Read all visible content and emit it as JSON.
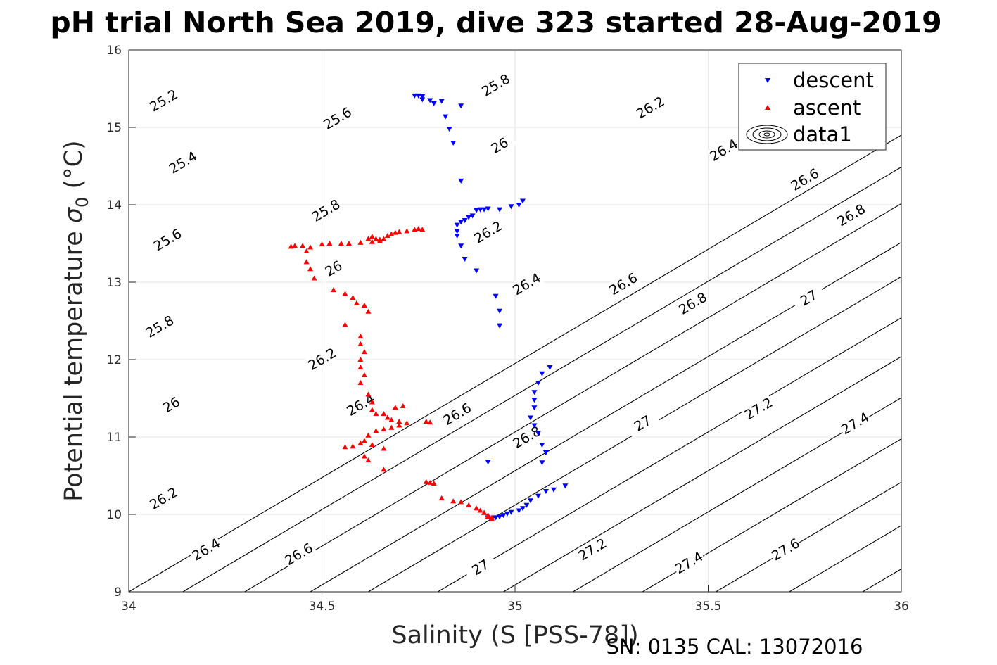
{
  "chart_data": {
    "type": "scatter",
    "title": "pH trial North Sea 2019, dive 323 started 28-Aug-2019",
    "xlabel": "Salinity (S [PSS-78])",
    "ylabel": "Potential temperature",
    "ylabel_symbol": "σ",
    "ylabel_sub": "0",
    "ylabel_unit": "(°C)",
    "xlim": [
      34,
      36
    ],
    "ylim": [
      9,
      16
    ],
    "xticks": [
      "34",
      "34.5",
      "35",
      "35.5",
      "36"
    ],
    "xtick_values": [
      34,
      34.5,
      35,
      35.5,
      36
    ],
    "yticks": [
      "9",
      "10",
      "11",
      "12",
      "13",
      "14",
      "15",
      "16"
    ],
    "ytick_values": [
      9,
      10,
      11,
      12,
      13,
      14,
      15,
      16
    ],
    "grid": true,
    "legend_position": "top-right",
    "legend": [
      "descent",
      "ascent",
      "data1"
    ],
    "footer": "SN: 0135  CAL: 13072016",
    "colors": {
      "descent": "#0000ff",
      "ascent": "#ff0000",
      "contour": "#000000",
      "grid": "#e6e6e6"
    },
    "contour_levels": [
      {
        "level": 25.2,
        "x0": 34.0,
        "labels": [
          {
            "text": "25.2",
            "s": 34.09,
            "t": 15.35
          }
        ]
      },
      {
        "level": 25.4,
        "x0": 34.14,
        "labels": [
          {
            "text": "25.4",
            "s": 34.14,
            "t": 14.55
          },
          {
            "text": "25.6",
            "s": 34.54,
            "t": 15.12
          }
        ]
      },
      {
        "level": 25.6,
        "x0": 34.3,
        "labels": [
          {
            "text": "25.6",
            "s": 34.1,
            "t": 13.55
          },
          {
            "text": "25.8",
            "s": 34.95,
            "t": 15.55
          }
        ]
      },
      {
        "level": 25.8,
        "x0": 34.47,
        "labels": [
          {
            "text": "25.8",
            "s": 34.08,
            "t": 12.43
          },
          {
            "text": "25.8",
            "s": 34.51,
            "t": 13.93
          },
          {
            "text": "26",
            "s": 34.96,
            "t": 14.77
          }
        ]
      },
      {
        "level": 26.0,
        "x0": 34.62,
        "labels": [
          {
            "text": "26",
            "s": 34.11,
            "t": 11.42
          },
          {
            "text": "26",
            "s": 34.53,
            "t": 13.18
          },
          {
            "text": "26.2",
            "s": 35.35,
            "t": 15.26
          }
        ]
      },
      {
        "level": 26.2,
        "x0": 34.8,
        "labels": [
          {
            "text": "26.2",
            "s": 34.09,
            "t": 10.21
          },
          {
            "text": "26.2",
            "s": 34.5,
            "t": 12.01
          },
          {
            "text": "26.2",
            "s": 34.93,
            "t": 13.65
          },
          {
            "text": "26.4",
            "s": 35.54,
            "t": 14.71
          }
        ]
      },
      {
        "level": 26.4,
        "x0": 34.97,
        "labels": [
          {
            "text": "26.4",
            "s": 34.2,
            "t": 9.55
          },
          {
            "text": "26.4",
            "s": 34.6,
            "t": 11.42
          },
          {
            "text": "26.4",
            "s": 35.03,
            "t": 12.98
          },
          {
            "text": "26.6",
            "s": 35.75,
            "t": 14.33
          }
        ]
      },
      {
        "level": 26.6,
        "x0": 35.15,
        "labels": [
          {
            "text": "26.6",
            "s": 34.44,
            "t": 9.49
          },
          {
            "text": "26.6",
            "s": 34.85,
            "t": 11.3
          },
          {
            "text": "26.6",
            "s": 35.28,
            "t": 12.98
          },
          {
            "text": "26.8",
            "s": 35.87,
            "t": 13.87
          }
        ]
      },
      {
        "level": 26.8,
        "x0": 35.33,
        "labels": [
          {
            "text": "26.8",
            "s": 35.03,
            "t": 11.0
          },
          {
            "text": "26.8",
            "s": 35.46,
            "t": 12.73
          }
        ]
      },
      {
        "level": 27.0,
        "x0": 35.52,
        "labels": [
          {
            "text": "27",
            "s": 34.91,
            "t": 9.32
          },
          {
            "text": "27",
            "s": 35.33,
            "t": 11.18
          },
          {
            "text": "27",
            "s": 35.76,
            "t": 12.8
          }
        ]
      },
      {
        "level": 27.2,
        "x0": 35.71,
        "labels": [
          {
            "text": "27.2",
            "s": 35.2,
            "t": 9.55
          },
          {
            "text": "27.2",
            "s": 35.63,
            "t": 11.37
          }
        ]
      },
      {
        "level": 27.4,
        "x0": 35.9,
        "labels": [
          {
            "text": "27.4",
            "s": 35.45,
            "t": 9.38
          },
          {
            "text": "27.4",
            "s": 35.88,
            "t": 11.18
          }
        ]
      },
      {
        "level": 27.6,
        "x0": 36.09,
        "labels": [
          {
            "text": "27.6",
            "s": 35.7,
            "t": 9.55
          }
        ]
      }
    ],
    "series": [
      {
        "name": "descent",
        "marker": "triangle-down",
        "points": [
          [
            34.74,
            15.41
          ],
          [
            34.75,
            15.41
          ],
          [
            34.76,
            15.4
          ],
          [
            34.76,
            15.36
          ],
          [
            34.78,
            15.35
          ],
          [
            34.79,
            15.31
          ],
          [
            34.81,
            15.34
          ],
          [
            34.86,
            15.28
          ],
          [
            34.82,
            15.14
          ],
          [
            34.83,
            14.98
          ],
          [
            34.84,
            14.8
          ],
          [
            34.86,
            14.31
          ],
          [
            34.85,
            13.74
          ],
          [
            34.86,
            13.78
          ],
          [
            34.87,
            13.8
          ],
          [
            34.88,
            13.84
          ],
          [
            34.89,
            13.86
          ],
          [
            34.9,
            13.93
          ],
          [
            34.91,
            13.94
          ],
          [
            34.92,
            13.94
          ],
          [
            34.93,
            13.95
          ],
          [
            34.96,
            13.94
          ],
          [
            34.99,
            13.98
          ],
          [
            35.01,
            14.0
          ],
          [
            35.02,
            14.05
          ],
          [
            34.85,
            13.66
          ],
          [
            34.85,
            13.6
          ],
          [
            34.86,
            13.47
          ],
          [
            34.87,
            13.3
          ],
          [
            34.9,
            13.15
          ],
          [
            34.95,
            12.82
          ],
          [
            34.96,
            12.63
          ],
          [
            34.96,
            12.44
          ],
          [
            35.09,
            11.9
          ],
          [
            35.07,
            11.82
          ],
          [
            35.06,
            11.7
          ],
          [
            35.05,
            11.58
          ],
          [
            35.05,
            11.48
          ],
          [
            35.05,
            11.38
          ],
          [
            35.04,
            11.25
          ],
          [
            35.05,
            11.15
          ],
          [
            35.06,
            11.05
          ],
          [
            35.07,
            10.9
          ],
          [
            35.08,
            10.8
          ],
          [
            35.07,
            10.67
          ],
          [
            34.93,
            10.68
          ],
          [
            35.13,
            10.37
          ],
          [
            35.1,
            10.32
          ],
          [
            35.08,
            10.3
          ],
          [
            35.06,
            10.24
          ],
          [
            35.04,
            10.18
          ],
          [
            35.03,
            10.12
          ],
          [
            35.02,
            10.08
          ],
          [
            35.01,
            10.05
          ],
          [
            34.99,
            10.03
          ],
          [
            34.98,
            10.01
          ],
          [
            34.97,
            9.99
          ],
          [
            34.96,
            9.97
          ],
          [
            34.95,
            9.96
          ],
          [
            34.94,
            9.95
          ],
          [
            34.93,
            9.96
          ]
        ]
      },
      {
        "name": "ascent",
        "marker": "triangle-up",
        "points": [
          [
            34.42,
            13.46
          ],
          [
            34.43,
            13.47
          ],
          [
            34.45,
            13.47
          ],
          [
            34.47,
            13.45
          ],
          [
            34.5,
            13.49
          ],
          [
            34.52,
            13.5
          ],
          [
            34.55,
            13.5
          ],
          [
            34.57,
            13.5
          ],
          [
            34.6,
            13.51
          ],
          [
            34.63,
            13.52
          ],
          [
            34.65,
            13.55
          ],
          [
            34.66,
            13.56
          ],
          [
            34.67,
            13.6
          ],
          [
            34.68,
            13.62
          ],
          [
            34.69,
            13.64
          ],
          [
            34.7,
            13.65
          ],
          [
            34.72,
            13.66
          ],
          [
            34.74,
            13.68
          ],
          [
            34.75,
            13.69
          ],
          [
            34.76,
            13.68
          ],
          [
            34.65,
            13.53
          ],
          [
            34.64,
            13.56
          ],
          [
            34.63,
            13.59
          ],
          [
            34.62,
            13.56
          ],
          [
            34.46,
            13.4
          ],
          [
            34.46,
            13.26
          ],
          [
            34.47,
            13.17
          ],
          [
            34.48,
            13.05
          ],
          [
            34.53,
            12.9
          ],
          [
            34.56,
            12.85
          ],
          [
            34.58,
            12.8
          ],
          [
            34.59,
            12.73
          ],
          [
            34.62,
            12.62
          ],
          [
            34.61,
            12.7
          ],
          [
            34.56,
            12.45
          ],
          [
            34.6,
            12.3
          ],
          [
            34.6,
            12.2
          ],
          [
            34.61,
            12.1
          ],
          [
            34.6,
            12.0
          ],
          [
            34.6,
            11.9
          ],
          [
            34.61,
            11.8
          ],
          [
            34.6,
            11.7
          ],
          [
            34.62,
            11.55
          ],
          [
            34.63,
            11.45
          ],
          [
            34.63,
            11.35
          ],
          [
            34.64,
            11.3
          ],
          [
            34.66,
            11.3
          ],
          [
            34.67,
            11.25
          ],
          [
            34.68,
            11.22
          ],
          [
            34.7,
            11.2
          ],
          [
            34.72,
            11.18
          ],
          [
            34.7,
            11.15
          ],
          [
            34.68,
            11.12
          ],
          [
            34.66,
            11.1
          ],
          [
            34.64,
            11.08
          ],
          [
            34.62,
            11.02
          ],
          [
            34.61,
            10.95
          ],
          [
            34.6,
            10.92
          ],
          [
            34.58,
            10.88
          ],
          [
            34.56,
            10.87
          ],
          [
            34.63,
            10.9
          ],
          [
            34.66,
            10.85
          ],
          [
            34.69,
            11.38
          ],
          [
            34.71,
            11.4
          ],
          [
            34.77,
            11.2
          ],
          [
            34.78,
            11.19
          ],
          [
            34.61,
            10.75
          ],
          [
            34.62,
            10.7
          ],
          [
            34.66,
            10.58
          ],
          [
            34.77,
            10.42
          ],
          [
            34.78,
            10.41
          ],
          [
            34.79,
            10.4
          ],
          [
            34.81,
            10.21
          ],
          [
            34.84,
            10.17
          ],
          [
            34.86,
            10.16
          ],
          [
            34.88,
            10.12
          ],
          [
            34.9,
            10.08
          ],
          [
            34.91,
            10.05
          ],
          [
            34.92,
            10.02
          ],
          [
            34.93,
            9.99
          ],
          [
            34.94,
            9.96
          ],
          [
            34.94,
            9.94
          ],
          [
            34.93,
            9.97
          ],
          [
            34.92,
            10.02
          ]
        ]
      }
    ]
  }
}
